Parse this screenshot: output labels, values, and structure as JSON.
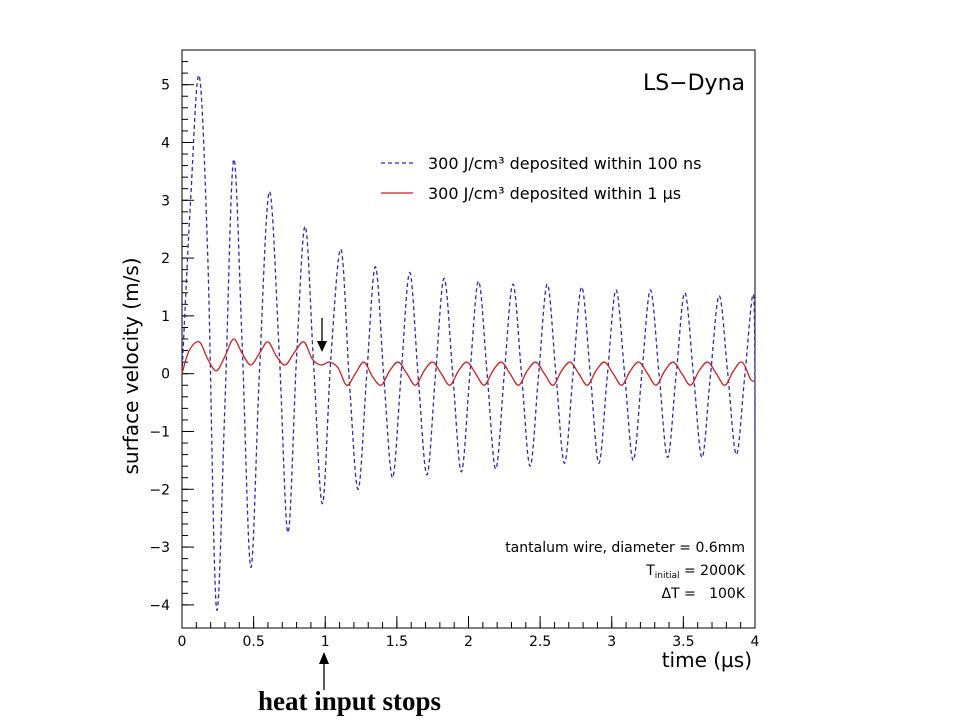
{
  "chart_data": {
    "type": "line",
    "title": "",
    "watermark": "LS−Dyna",
    "xlabel": "time (µs)",
    "ylabel": "surface velocity (m/s)",
    "xlim": [
      0,
      4
    ],
    "ylim": [
      -4.4,
      5.6
    ],
    "x_ticks": [
      0,
      0.5,
      1,
      1.5,
      2,
      2.5,
      3,
      3.5,
      4
    ],
    "x_tick_labels": [
      "0",
      "0.5",
      "1",
      "1.5",
      "2",
      "2.5",
      "3",
      "3.5",
      "4"
    ],
    "y_ticks": [
      -4,
      -3,
      -2,
      -1,
      0,
      1,
      2,
      3,
      4,
      5
    ],
    "y_tick_labels": [
      "−4",
      "−3",
      "−2",
      "−1",
      "0",
      "1",
      "2",
      "3",
      "4",
      "5"
    ],
    "grid": false,
    "legend_position": "top-right",
    "series": [
      {
        "name": "300 J/cm³ deposited within 100 ns",
        "style": "dashed",
        "color": "#2b2bb0",
        "points": [
          [
            0.0,
            0.0
          ],
          [
            0.06,
            3.0
          ],
          [
            0.12,
            5.15
          ],
          [
            0.18,
            2.0
          ],
          [
            0.24,
            -4.05
          ],
          [
            0.3,
            -0.5
          ],
          [
            0.36,
            3.7
          ],
          [
            0.42,
            0.5
          ],
          [
            0.48,
            -3.35
          ],
          [
            0.54,
            0.0
          ],
          [
            0.61,
            3.15
          ],
          [
            0.68,
            0.3
          ],
          [
            0.74,
            -2.75
          ],
          [
            0.8,
            0.3
          ],
          [
            0.86,
            2.55
          ],
          [
            0.92,
            0.1
          ],
          [
            0.98,
            -2.25
          ],
          [
            1.04,
            0.3
          ],
          [
            1.11,
            2.15
          ],
          [
            1.17,
            -0.2
          ],
          [
            1.23,
            -2.0
          ],
          [
            1.29,
            0.0
          ],
          [
            1.35,
            1.85
          ],
          [
            1.41,
            -0.1
          ],
          [
            1.47,
            -1.8
          ],
          [
            1.53,
            0.0
          ],
          [
            1.59,
            1.75
          ],
          [
            1.65,
            -0.1
          ],
          [
            1.71,
            -1.75
          ],
          [
            1.77,
            0.0
          ],
          [
            1.83,
            1.65
          ],
          [
            1.89,
            0.0
          ],
          [
            1.95,
            -1.7
          ],
          [
            2.01,
            0.0
          ],
          [
            2.07,
            1.6
          ],
          [
            2.13,
            0.0
          ],
          [
            2.19,
            -1.65
          ],
          [
            2.25,
            0.0
          ],
          [
            2.31,
            1.55
          ],
          [
            2.37,
            0.0
          ],
          [
            2.43,
            -1.6
          ],
          [
            2.49,
            0.0
          ],
          [
            2.55,
            1.55
          ],
          [
            2.61,
            0.0
          ],
          [
            2.67,
            -1.55
          ],
          [
            2.73,
            0.0
          ],
          [
            2.79,
            1.5
          ],
          [
            2.85,
            0.0
          ],
          [
            2.91,
            -1.55
          ],
          [
            2.97,
            0.0
          ],
          [
            3.03,
            1.45
          ],
          [
            3.09,
            0.0
          ],
          [
            3.15,
            -1.5
          ],
          [
            3.21,
            0.0
          ],
          [
            3.27,
            1.45
          ],
          [
            3.33,
            0.0
          ],
          [
            3.39,
            -1.45
          ],
          [
            3.45,
            0.0
          ],
          [
            3.51,
            1.4
          ],
          [
            3.57,
            0.0
          ],
          [
            3.63,
            -1.45
          ],
          [
            3.69,
            0.0
          ],
          [
            3.75,
            1.35
          ],
          [
            3.81,
            0.0
          ],
          [
            3.87,
            -1.4
          ],
          [
            3.93,
            0.0
          ],
          [
            3.99,
            1.35
          ],
          [
            4.0,
            -1.2
          ]
        ]
      },
      {
        "name": "300 J/cm³ deposited within 1 µs",
        "style": "solid",
        "color": "#cc2222",
        "points": [
          [
            0.0,
            0.0
          ],
          [
            0.05,
            0.4
          ],
          [
            0.12,
            0.55
          ],
          [
            0.18,
            0.25
          ],
          [
            0.24,
            0.05
          ],
          [
            0.3,
            0.3
          ],
          [
            0.36,
            0.6
          ],
          [
            0.42,
            0.35
          ],
          [
            0.48,
            0.15
          ],
          [
            0.54,
            0.35
          ],
          [
            0.6,
            0.55
          ],
          [
            0.66,
            0.3
          ],
          [
            0.72,
            0.15
          ],
          [
            0.78,
            0.35
          ],
          [
            0.85,
            0.55
          ],
          [
            0.91,
            0.25
          ],
          [
            0.97,
            0.15
          ],
          [
            1.03,
            0.2
          ],
          [
            1.09,
            0.1
          ],
          [
            1.15,
            -0.2
          ],
          [
            1.21,
            0.0
          ],
          [
            1.27,
            0.2
          ],
          [
            1.33,
            -0.05
          ],
          [
            1.39,
            -0.2
          ],
          [
            1.45,
            0.05
          ],
          [
            1.51,
            0.2
          ],
          [
            1.57,
            0.0
          ],
          [
            1.63,
            -0.2
          ],
          [
            1.69,
            0.05
          ],
          [
            1.75,
            0.2
          ],
          [
            1.81,
            0.0
          ],
          [
            1.87,
            -0.2
          ],
          [
            1.93,
            0.05
          ],
          [
            1.99,
            0.2
          ],
          [
            2.05,
            0.0
          ],
          [
            2.11,
            -0.2
          ],
          [
            2.17,
            0.05
          ],
          [
            2.23,
            0.2
          ],
          [
            2.29,
            0.0
          ],
          [
            2.35,
            -0.2
          ],
          [
            2.41,
            0.05
          ],
          [
            2.47,
            0.2
          ],
          [
            2.53,
            0.0
          ],
          [
            2.59,
            -0.2
          ],
          [
            2.65,
            0.05
          ],
          [
            2.71,
            0.2
          ],
          [
            2.77,
            0.0
          ],
          [
            2.83,
            -0.2
          ],
          [
            2.89,
            0.05
          ],
          [
            2.95,
            0.2
          ],
          [
            3.01,
            0.0
          ],
          [
            3.07,
            -0.2
          ],
          [
            3.13,
            0.05
          ],
          [
            3.19,
            0.2
          ],
          [
            3.25,
            0.0
          ],
          [
            3.31,
            -0.2
          ],
          [
            3.37,
            0.05
          ],
          [
            3.43,
            0.2
          ],
          [
            3.49,
            0.0
          ],
          [
            3.55,
            -0.2
          ],
          [
            3.61,
            0.05
          ],
          [
            3.67,
            0.2
          ],
          [
            3.73,
            0.0
          ],
          [
            3.79,
            -0.2
          ],
          [
            3.85,
            0.05
          ],
          [
            3.91,
            0.2
          ],
          [
            3.97,
            -0.1
          ],
          [
            4.0,
            -0.12
          ]
        ]
      }
    ],
    "annotations": {
      "notes": [
        "tantalum wire, diameter = 0.6mm",
        "T",
        "initial",
        " = 2000K",
        "ΔT =   100K"
      ],
      "arrow_marker_x": 1.0,
      "caption": "heat input stops"
    }
  }
}
